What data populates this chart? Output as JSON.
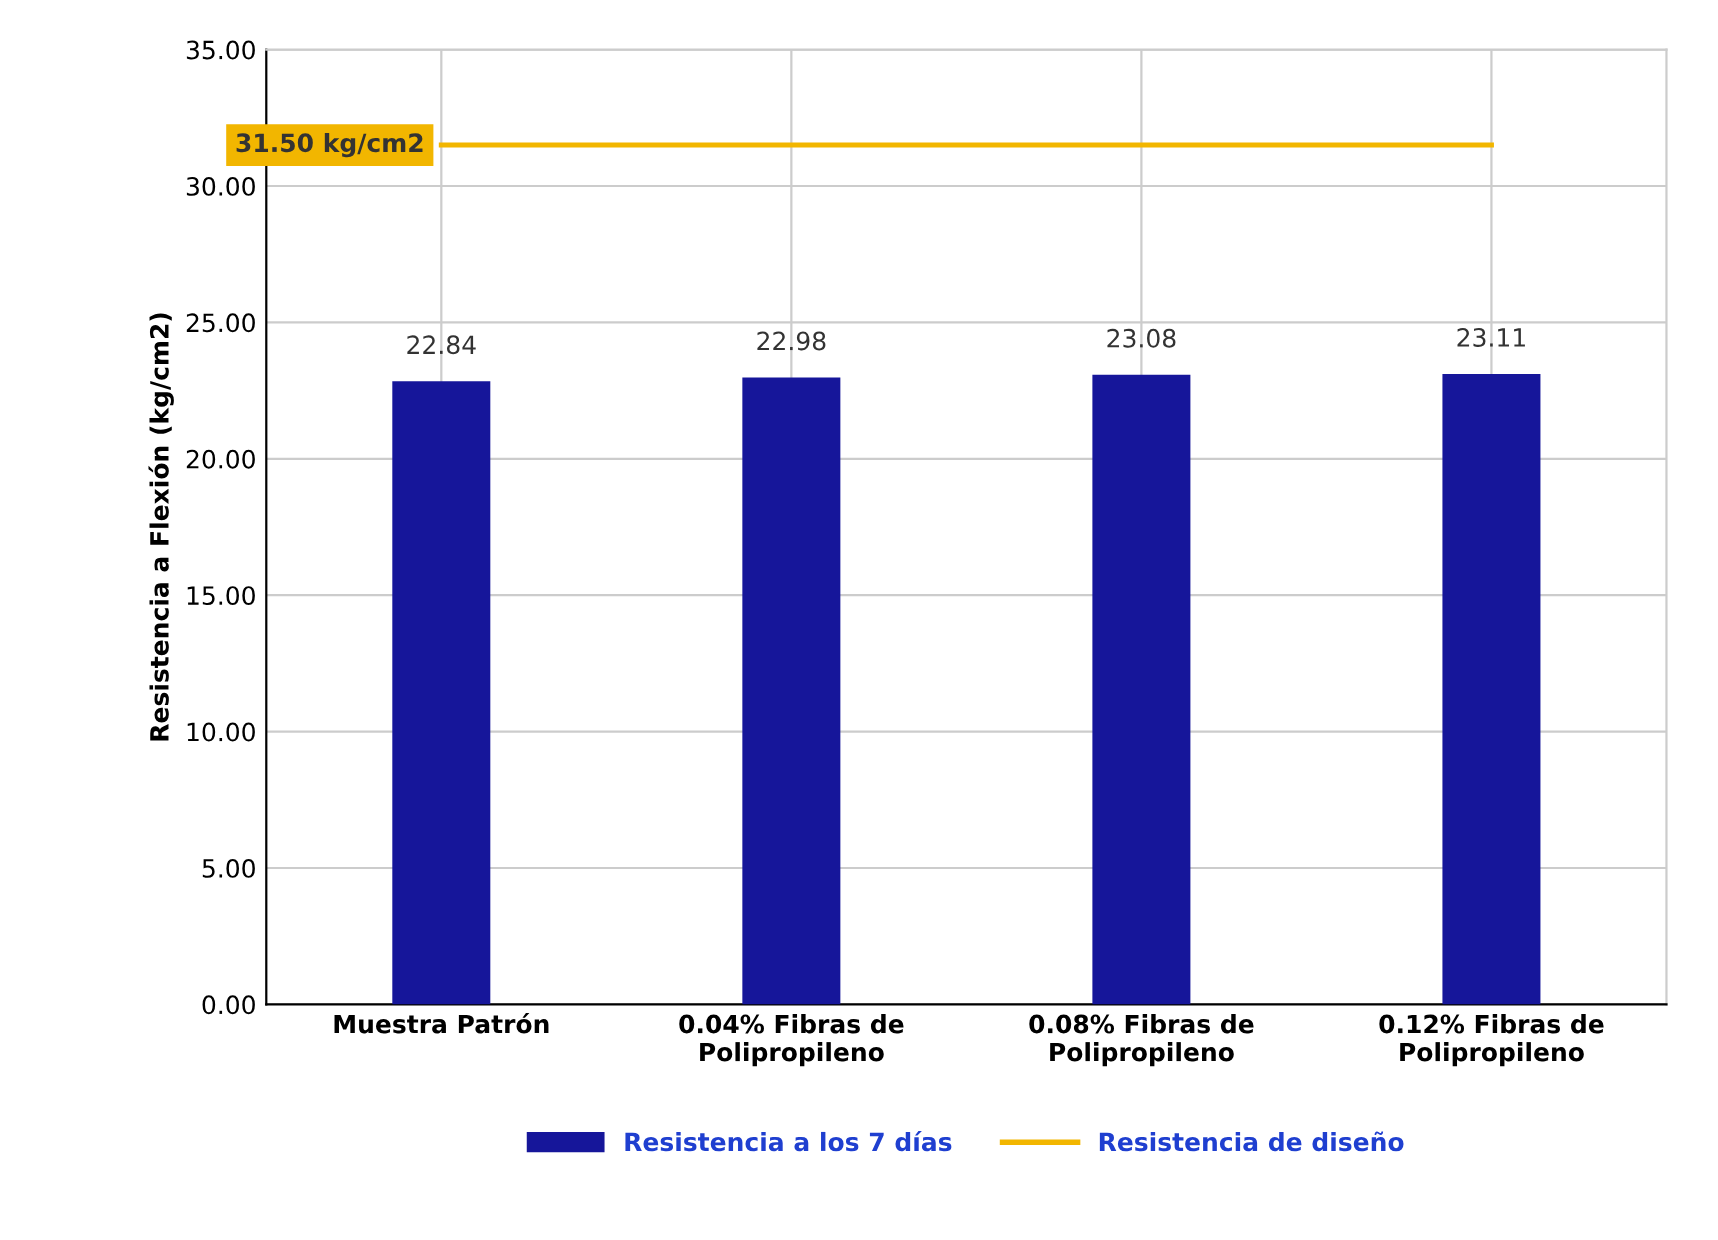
{
  "chart_data": {
    "type": "bar",
    "ylabel": "Resistencia a Flexión (kg/cm2)",
    "categories": [
      "Muestra Patrón",
      "0.04% Fibras de\nPolipropileno",
      "0.08% Fibras de\nPolipropileno",
      "0.12% Fibras de\nPolipropileno"
    ],
    "series": [
      {
        "name": "Resistencia a los 7 días",
        "color": "#16169a",
        "values": [
          22.84,
          22.98,
          23.08,
          23.11
        ],
        "value_labels": [
          "22.84",
          "22.98",
          "23.08",
          "23.11"
        ]
      },
      {
        "name": "Resistencia de diseño",
        "type": "line",
        "color": "#f2b600",
        "values": [
          31.5,
          31.5,
          31.5,
          31.5
        ],
        "value_labels": [
          "31.50 kg/cm2",
          null,
          null,
          null
        ]
      }
    ],
    "ylim": [
      0,
      35
    ],
    "yticks": [
      {
        "value": 0,
        "label": "0.00"
      },
      {
        "value": 5,
        "label": "5.00"
      },
      {
        "value": 10,
        "label": "10.00"
      },
      {
        "value": 15,
        "label": "15.00"
      },
      {
        "value": 20,
        "label": "20.00"
      },
      {
        "value": 25,
        "label": "25.00"
      },
      {
        "value": 30,
        "label": "30.00"
      },
      {
        "value": 35,
        "label": "35.00"
      }
    ],
    "grid": true,
    "legend": "bottom",
    "marker": "none",
    "line_style": "solid"
  }
}
